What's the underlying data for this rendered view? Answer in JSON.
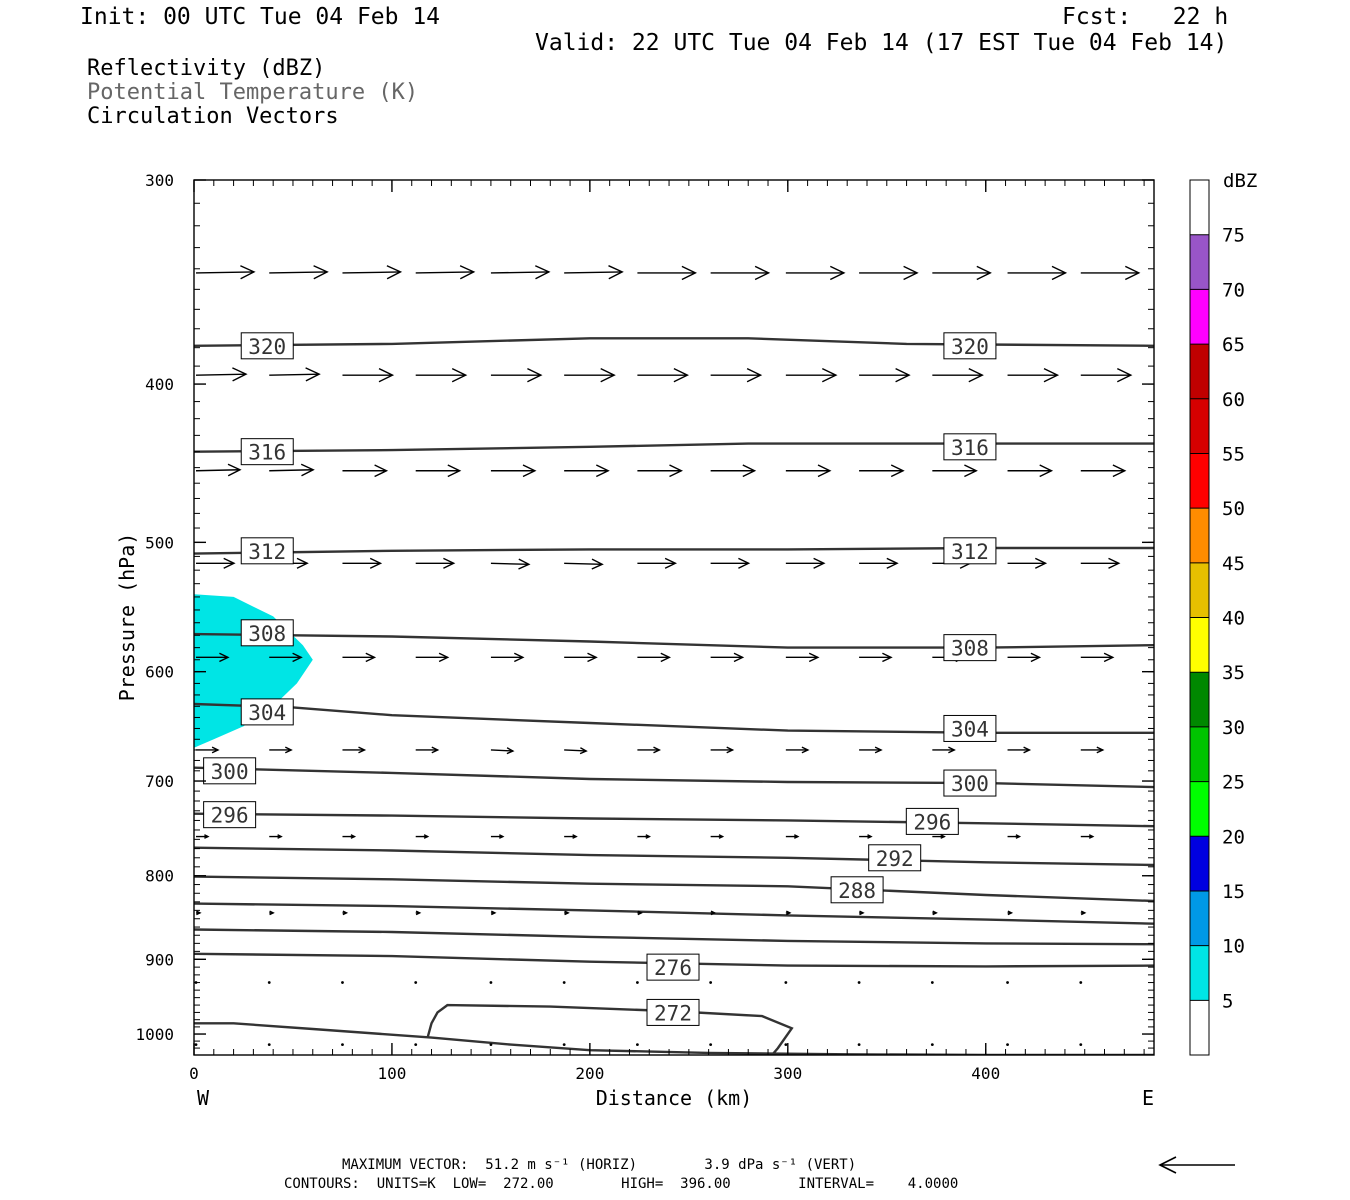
{
  "header": {
    "init": "Init: 00 UTC Tue 04 Feb 14",
    "fcst": "Fcst:   22 h",
    "valid": "Valid: 22 UTC Tue 04 Feb 14 (17 EST Tue 04 Feb 14)"
  },
  "legend_text": {
    "line1": "Reflectivity (dBZ)",
    "line2": "Potential Temperature (K)",
    "line3": "Circulation Vectors"
  },
  "footer": {
    "line1": "MAXIMUM VECTOR:  51.2 m s⁻¹ (HORIZ)        3.9 dPa s⁻¹ (VERT)",
    "line2": "CONTOURS:  UNITS=K  LOW=  272.00        HIGH=  396.00        INTERVAL=    4.0000"
  },
  "colors": {
    "contour": "#333333",
    "vector": "#000000",
    "reflectivity_fill": "#00e5e5",
    "line2_text": "#666666"
  },
  "chart_data": {
    "type": "cross-section",
    "xlabel": "Distance (km)",
    "ylabel": "Pressure (hPa)",
    "xlim": [
      0,
      485
    ],
    "ylim": [
      300,
      1030
    ],
    "y_log_scale": true,
    "xticks": [
      0,
      100,
      200,
      300,
      400
    ],
    "yticks": [
      300,
      400,
      500,
      600,
      700,
      800,
      900,
      1000
    ],
    "x_end_labels": {
      "left": "W",
      "right": "E"
    },
    "colorbar": {
      "unit": "dBZ",
      "levels": [
        5,
        10,
        15,
        20,
        25,
        30,
        35,
        40,
        45,
        50,
        55,
        60,
        65,
        70,
        75
      ],
      "colors": [
        "#ffffff",
        "#00e5e5",
        "#0099e6",
        "#0000e0",
        "#00ff00",
        "#00c400",
        "#008800",
        "#ffff00",
        "#e6c000",
        "#ff8c00",
        "#ff0000",
        "#d60000",
        "#c00000",
        "#ff00ff",
        "#9955c8",
        "#ffffff"
      ]
    },
    "reflectivity_areas": [
      {
        "min_dbz": 5,
        "max_dbz": 10,
        "points": [
          [
            0,
            538
          ],
          [
            20,
            540
          ],
          [
            40,
            555
          ],
          [
            55,
            578
          ],
          [
            60,
            590
          ],
          [
            52,
            610
          ],
          [
            40,
            630
          ],
          [
            25,
            648
          ],
          [
            10,
            660
          ],
          [
            0,
            668
          ]
        ]
      }
    ],
    "theta_contours": [
      {
        "value": 320,
        "points": [
          [
            0,
            379
          ],
          [
            100,
            378
          ],
          [
            200,
            375
          ],
          [
            280,
            375
          ],
          [
            360,
            378
          ],
          [
            485,
            379
          ]
        ],
        "labels": [
          [
            37,
            379
          ],
          [
            392,
            379
          ]
        ]
      },
      {
        "value": 316,
        "points": [
          [
            0,
            440
          ],
          [
            100,
            439
          ],
          [
            200,
            437
          ],
          [
            280,
            435
          ],
          [
            360,
            435
          ],
          [
            485,
            435
          ]
        ],
        "labels": [
          [
            37,
            440
          ],
          [
            392,
            437
          ]
        ]
      },
      {
        "value": 312,
        "points": [
          [
            0,
            508
          ],
          [
            100,
            506
          ],
          [
            200,
            505
          ],
          [
            300,
            505
          ],
          [
            400,
            504
          ],
          [
            485,
            504
          ]
        ],
        "labels": [
          [
            37,
            506
          ],
          [
            392,
            506
          ]
        ]
      },
      {
        "value": 308,
        "points": [
          [
            0,
            569
          ],
          [
            50,
            570
          ],
          [
            100,
            571
          ],
          [
            200,
            575
          ],
          [
            300,
            580
          ],
          [
            400,
            580
          ],
          [
            485,
            578
          ]
        ],
        "labels": [
          [
            37,
            568
          ],
          [
            392,
            580
          ]
        ]
      },
      {
        "value": 304,
        "points": [
          [
            0,
            628
          ],
          [
            50,
            631
          ],
          [
            100,
            638
          ],
          [
            200,
            645
          ],
          [
            300,
            652
          ],
          [
            400,
            654
          ],
          [
            485,
            654
          ]
        ],
        "labels": [
          [
            37,
            635
          ],
          [
            392,
            650
          ]
        ]
      },
      {
        "value": 300,
        "points": [
          [
            0,
            687
          ],
          [
            100,
            692
          ],
          [
            200,
            698
          ],
          [
            300,
            701
          ],
          [
            400,
            702
          ],
          [
            485,
            706
          ]
        ],
        "labels": [
          [
            18,
            690
          ],
          [
            392,
            702
          ]
        ]
      },
      {
        "value": 296,
        "points": [
          [
            0,
            733
          ],
          [
            100,
            735
          ],
          [
            200,
            738
          ],
          [
            300,
            740
          ],
          [
            400,
            743
          ],
          [
            485,
            746
          ]
        ],
        "labels": [
          [
            18,
            734
          ],
          [
            373,
            741
          ]
        ]
      },
      {
        "value": 292,
        "points": [
          [
            0,
            769
          ],
          [
            100,
            772
          ],
          [
            200,
            777
          ],
          [
            300,
            780
          ],
          [
            400,
            785
          ],
          [
            485,
            788
          ]
        ],
        "labels": [
          [
            354,
            780
          ],
          [
            null,
            null
          ]
        ]
      },
      {
        "value": 288,
        "points": [
          [
            0,
            801
          ],
          [
            100,
            804
          ],
          [
            200,
            809
          ],
          [
            300,
            812
          ],
          [
            400,
            822
          ],
          [
            485,
            829
          ]
        ],
        "labels": [
          [
            335,
            816
          ],
          [
            null,
            null
          ]
        ]
      },
      {
        "value": 284,
        "points": [
          [
            0,
            832
          ],
          [
            100,
            835
          ],
          [
            200,
            840
          ],
          [
            300,
            846
          ],
          [
            400,
            851
          ],
          [
            485,
            856
          ]
        ],
        "labels": []
      },
      {
        "value": 280,
        "points": [
          [
            0,
            863
          ],
          [
            100,
            866
          ],
          [
            200,
            872
          ],
          [
            300,
            877
          ],
          [
            400,
            880
          ],
          [
            485,
            881
          ]
        ],
        "labels": []
      },
      {
        "value": 276,
        "points": [
          [
            0,
            893
          ],
          [
            100,
            896
          ],
          [
            200,
            903
          ],
          [
            300,
            908
          ],
          [
            400,
            909
          ],
          [
            485,
            908
          ]
        ],
        "labels": [
          [
            242,
            910
          ]
        ]
      },
      {
        "value": 272,
        "points": [
          [
            118,
            1005
          ],
          [
            120,
            985
          ],
          [
            123,
            970
          ],
          [
            128,
            960
          ],
          [
            180,
            962
          ],
          [
            240,
            968
          ],
          [
            287,
            975
          ],
          [
            302,
            992
          ],
          [
            295,
            1020
          ],
          [
            292,
            1030
          ]
        ],
        "labels": [
          [
            242,
            970
          ]
        ]
      },
      {
        "value": 272,
        "points": [
          [
            0,
            985
          ],
          [
            20,
            985
          ],
          [
            60,
            993
          ],
          [
            120,
            1005
          ],
          [
            160,
            1015
          ],
          [
            200,
            1023
          ],
          [
            260,
            1027
          ],
          [
            330,
            1029
          ],
          [
            400,
            1030
          ],
          [
            485,
            1030
          ]
        ],
        "labels": []
      }
    ],
    "circulation_vectors": {
      "x": [
        0,
        37,
        74,
        111,
        149,
        186,
        223,
        260,
        298,
        335,
        372,
        410,
        447
      ],
      "rows": [
        {
          "p": 342,
          "u": [
            58,
            58,
            58,
            58,
            58,
            58,
            58,
            58,
            58,
            58,
            58,
            58,
            58
          ],
          "w": [
            -1,
            -1,
            -1,
            -1,
            -1,
            -1,
            0,
            0,
            0,
            0,
            0,
            0,
            0
          ]
        },
        {
          "p": 395,
          "u": [
            50,
            50,
            50,
            50,
            50,
            50,
            50,
            50,
            50,
            50,
            50,
            50,
            50
          ],
          "w": [
            -1,
            -1,
            0,
            0,
            0,
            0,
            0,
            0,
            0,
            0,
            0,
            0,
            0
          ]
        },
        {
          "p": 452,
          "u": [
            44,
            44,
            44,
            44,
            44,
            44,
            44,
            44,
            44,
            44,
            44,
            44,
            44
          ],
          "w": [
            -1,
            -1,
            0,
            0,
            0,
            0,
            0,
            0,
            0,
            0,
            0,
            0,
            0
          ]
        },
        {
          "p": 515,
          "u": [
            38,
            38,
            38,
            38,
            38,
            38,
            38,
            38,
            38,
            38,
            38,
            38,
            38
          ],
          "w": [
            0,
            0,
            0,
            0,
            1,
            1,
            0,
            0,
            0,
            0,
            0,
            0,
            0
          ]
        },
        {
          "p": 588,
          "u": [
            32,
            32,
            32,
            32,
            32,
            32,
            32,
            32,
            32,
            32,
            32,
            32,
            32
          ],
          "w": [
            0,
            0,
            0,
            0,
            0,
            0,
            0,
            0,
            0,
            0,
            0,
            0,
            0
          ]
        },
        {
          "p": 670,
          "u": [
            22,
            22,
            22,
            22,
            22,
            22,
            22,
            22,
            22,
            22,
            22,
            22,
            22
          ],
          "w": [
            0,
            0,
            0,
            0,
            1,
            1,
            0,
            0,
            0,
            0,
            0,
            0,
            0
          ]
        },
        {
          "p": 757,
          "u": [
            12,
            12,
            12,
            12,
            12,
            12,
            12,
            12,
            12,
            12,
            12,
            12,
            12
          ],
          "w": [
            0,
            0,
            0,
            0,
            0,
            0,
            0,
            0,
            0,
            0,
            0,
            0,
            0
          ]
        },
        {
          "p": 843,
          "u": [
            4,
            4,
            4,
            4,
            4,
            4,
            4,
            4,
            4,
            4,
            4,
            4,
            4
          ],
          "w": [
            0,
            0,
            0,
            0,
            0,
            0,
            0,
            0,
            0,
            0,
            0,
            0,
            0
          ]
        },
        {
          "p": 930,
          "u": [
            1,
            1,
            1,
            1,
            1,
            1,
            1,
            1,
            1,
            1,
            1,
            1,
            1
          ],
          "w": [
            0,
            0,
            0,
            0,
            0,
            0,
            0,
            0,
            0,
            0,
            0,
            0,
            0
          ]
        },
        {
          "p": 1015,
          "u": [
            1,
            1,
            1,
            1,
            1,
            1,
            1,
            1,
            1,
            1,
            1,
            1,
            1
          ],
          "w": [
            0,
            0,
            0,
            0,
            0,
            0,
            0,
            0,
            0,
            0,
            0,
            0,
            0
          ]
        }
      ]
    }
  }
}
